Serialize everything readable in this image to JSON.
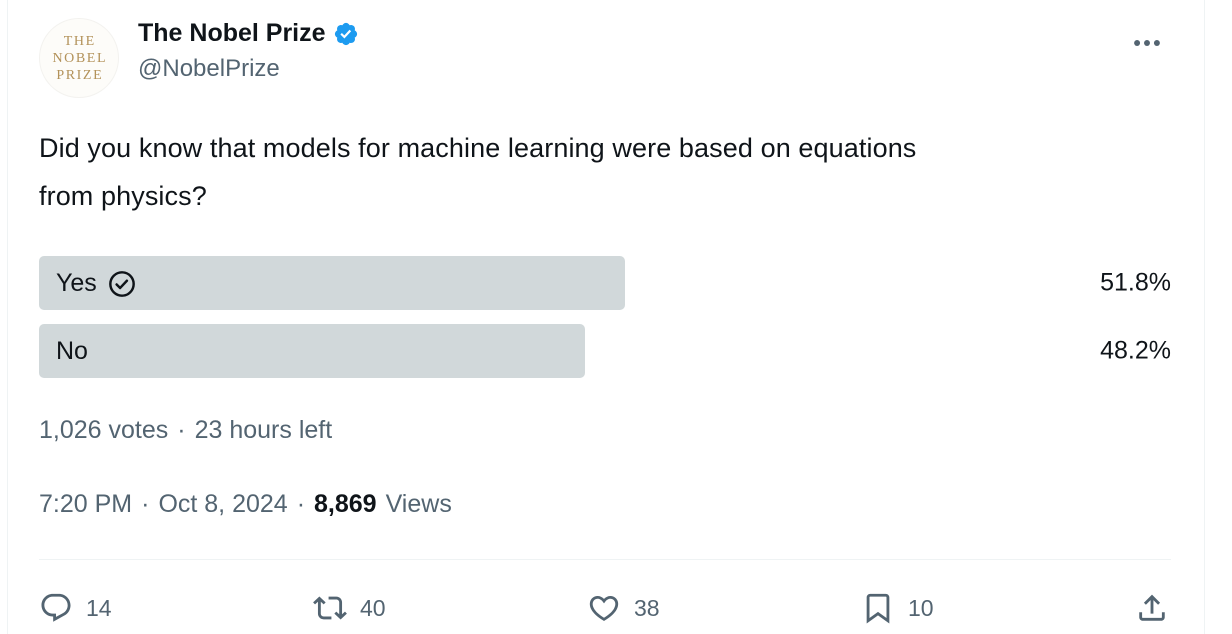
{
  "colors": {
    "text_primary": "#0f1419",
    "text_secondary": "#536471",
    "verified_blue": "#1d9bf0",
    "poll_bar": "#d1d8da",
    "divider": "#eff3f4",
    "avatar_gold": "#b3925a"
  },
  "header": {
    "avatar_line1": "THE",
    "avatar_line2": "NOBEL",
    "avatar_line3": "PRIZE",
    "display_name": "The Nobel Prize",
    "handle": "@NobelPrize"
  },
  "tweet": {
    "text": "Did you know that models for machine learning were based on equations from physics?",
    "line1": "Did you know that models for machine learning were based on equations",
    "line2": "from physics?"
  },
  "poll": {
    "options": [
      {
        "label": "Yes",
        "percent_label": "51.8%",
        "percent": 51.8,
        "voted": true
      },
      {
        "label": "No",
        "percent_label": "48.2%",
        "percent": 48.2,
        "voted": false
      }
    ],
    "votes": "1,026 votes",
    "separator": "·",
    "time_left": "23 hours left"
  },
  "meta": {
    "time": "7:20 PM",
    "sep1": "·",
    "date": "Oct 8, 2024",
    "sep2": "·",
    "views_count": "8,869",
    "views_label": "Views"
  },
  "actions": {
    "reply_count": "14",
    "repost_count": "40",
    "like_count": "38",
    "bookmark_count": "10"
  },
  "icons": {
    "verified": "verified-badge-icon",
    "more": "more-ellipsis-icon",
    "vote_check": "check-circle-icon",
    "reply": "reply-bubble-icon",
    "repost": "repost-arrows-icon",
    "like": "heart-icon",
    "bookmark": "bookmark-icon",
    "share": "share-upload-icon"
  }
}
